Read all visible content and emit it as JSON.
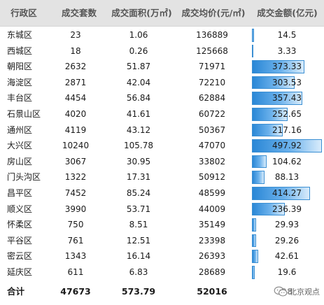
{
  "headers": {
    "district": "行政区",
    "count": "成交套数",
    "area": "成交面积(万㎡)",
    "price": "成交均价(元/㎡)",
    "amount": "成交金额(亿元)"
  },
  "rows": [
    {
      "district": "东城区",
      "count": "23",
      "area": "1.06",
      "price": "136889",
      "amount": "14.5"
    },
    {
      "district": "西城区",
      "count": "18",
      "area": "0.26",
      "price": "125668",
      "amount": "3.33"
    },
    {
      "district": "朝阳区",
      "count": "2632",
      "area": "51.87",
      "price": "71971",
      "amount": "373.33"
    },
    {
      "district": "海淀区",
      "count": "2871",
      "area": "42.04",
      "price": "72210",
      "amount": "303.53"
    },
    {
      "district": "丰台区",
      "count": "4454",
      "area": "56.84",
      "price": "62884",
      "amount": "357.43"
    },
    {
      "district": "石景山区",
      "count": "4020",
      "area": "41.61",
      "price": "60722",
      "amount": "252.65"
    },
    {
      "district": "通州区",
      "count": "4119",
      "area": "43.12",
      "price": "50367",
      "amount": "217.16"
    },
    {
      "district": "大兴区",
      "count": "10240",
      "area": "105.78",
      "price": "47070",
      "amount": "497.92"
    },
    {
      "district": "房山区",
      "count": "3067",
      "area": "30.95",
      "price": "33802",
      "amount": "104.62"
    },
    {
      "district": "门头沟区",
      "count": "1322",
      "area": "17.31",
      "price": "50912",
      "amount": "88.13"
    },
    {
      "district": "昌平区",
      "count": "7452",
      "area": "85.24",
      "price": "48599",
      "amount": "414.27"
    },
    {
      "district": "顺义区",
      "count": "3990",
      "area": "53.71",
      "price": "44009",
      "amount": "236.39"
    },
    {
      "district": "怀柔区",
      "count": "750",
      "area": "8.51",
      "price": "35149",
      "amount": "29.93"
    },
    {
      "district": "平谷区",
      "count": "761",
      "area": "12.51",
      "price": "23398",
      "amount": "29.26"
    },
    {
      "district": "密云区",
      "count": "1343",
      "area": "16.14",
      "price": "26393",
      "amount": "42.61"
    },
    {
      "district": "延庆区",
      "count": "611",
      "area": "6.83",
      "price": "28689",
      "amount": "19.6"
    }
  ],
  "total": {
    "label": "合计",
    "count": "47673",
    "area": "573.79",
    "price": "52016",
    "amount_visible": "98"
  },
  "amount_bar_max": 497.92,
  "bar_color": "#2a87d6",
  "watermark": {
    "icon": "wechat-icon",
    "text": "北京观点"
  }
}
